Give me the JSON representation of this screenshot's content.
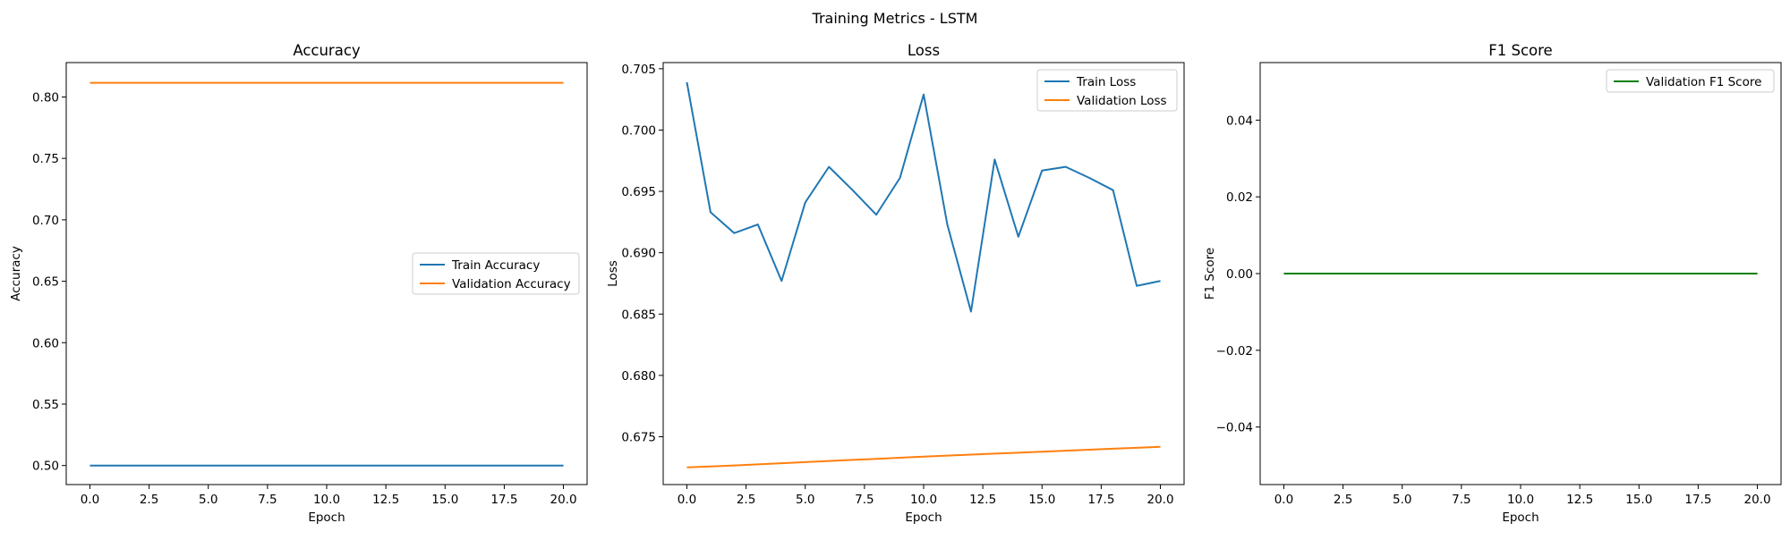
{
  "figure": {
    "suptitle": "Training Metrics - LSTM"
  },
  "colors": {
    "blue": "#1f77b4",
    "orange": "#ff7f0e",
    "green": "#008000"
  },
  "chart_data": [
    {
      "type": "line",
      "title": "Accuracy",
      "xlabel": "Epoch",
      "ylabel": "Accuracy",
      "xlim": [
        -1,
        21
      ],
      "ylim": [
        0.4845,
        0.828
      ],
      "xticks": [
        0,
        2.5,
        5,
        7.5,
        10,
        12.5,
        15,
        17.5,
        20
      ],
      "xtick_labels": [
        "0.0",
        "2.5",
        "5.0",
        "7.5",
        "10.0",
        "12.5",
        "15.0",
        "17.5",
        "20.0"
      ],
      "yticks": [
        0.5,
        0.55,
        0.6,
        0.65,
        0.7,
        0.75,
        0.8
      ],
      "ytick_labels": [
        "0.50",
        "0.55",
        "0.60",
        "0.65",
        "0.70",
        "0.75",
        "0.80"
      ],
      "legend_position": "center-right",
      "x": [
        0,
        1,
        2,
        3,
        4,
        5,
        6,
        7,
        8,
        9,
        10,
        11,
        12,
        13,
        14,
        15,
        16,
        17,
        18,
        19,
        20
      ],
      "series": [
        {
          "name": "Train Accuracy",
          "color": "#1f77b4",
          "values": [
            0.5,
            0.5,
            0.5,
            0.5,
            0.5,
            0.5,
            0.5,
            0.5,
            0.5,
            0.5,
            0.5,
            0.5,
            0.5,
            0.5,
            0.5,
            0.5,
            0.5,
            0.5,
            0.5,
            0.5,
            0.5
          ]
        },
        {
          "name": "Validation Accuracy",
          "color": "#ff7f0e",
          "values": [
            0.8115,
            0.8115,
            0.8115,
            0.8115,
            0.8115,
            0.8115,
            0.8115,
            0.8115,
            0.8115,
            0.8115,
            0.8115,
            0.8115,
            0.8115,
            0.8115,
            0.8115,
            0.8115,
            0.8115,
            0.8115,
            0.8115,
            0.8115,
            0.8115
          ]
        }
      ]
    },
    {
      "type": "line",
      "title": "Loss",
      "xlabel": "Epoch",
      "ylabel": "Loss",
      "xlim": [
        -1,
        21
      ],
      "ylim": [
        0.6711,
        0.7055
      ],
      "xticks": [
        0,
        2.5,
        5,
        7.5,
        10,
        12.5,
        15,
        17.5,
        20
      ],
      "xtick_labels": [
        "0.0",
        "2.5",
        "5.0",
        "7.5",
        "10.0",
        "12.5",
        "15.0",
        "17.5",
        "20.0"
      ],
      "yticks": [
        0.675,
        0.68,
        0.685,
        0.69,
        0.695,
        0.7,
        0.705
      ],
      "ytick_labels": [
        "0.675",
        "0.680",
        "0.685",
        "0.690",
        "0.695",
        "0.700",
        "0.705"
      ],
      "legend_position": "top-right",
      "x": [
        0,
        1,
        2,
        3,
        4,
        5,
        6,
        7,
        8,
        9,
        10,
        11,
        12,
        13,
        14,
        15,
        16,
        17,
        18,
        19,
        20
      ],
      "series": [
        {
          "name": "Train Loss",
          "color": "#1f77b4",
          "values": [
            0.7039,
            0.6933,
            0.6916,
            0.6923,
            0.6877,
            0.6941,
            0.697,
            0.6951,
            0.6931,
            0.6961,
            0.7029,
            0.6923,
            0.6852,
            0.6976,
            0.6913,
            0.6967,
            0.697,
            0.6961,
            0.6951,
            0.6873,
            0.6877
          ]
        },
        {
          "name": "Validation Loss",
          "color": "#ff7f0e",
          "values": [
            0.6725,
            0.67258,
            0.67266,
            0.67275,
            0.67284,
            0.67293,
            0.67302,
            0.67311,
            0.6732,
            0.67329,
            0.67338,
            0.67346,
            0.67354,
            0.67362,
            0.6737,
            0.67378,
            0.67386,
            0.67394,
            0.67402,
            0.6741,
            0.67418
          ]
        }
      ]
    },
    {
      "type": "line",
      "title": "F1 Score",
      "xlabel": "Epoch",
      "ylabel": "F1 Score",
      "xlim": [
        -1,
        21
      ],
      "ylim": [
        -0.055,
        0.055
      ],
      "xticks": [
        0,
        2.5,
        5,
        7.5,
        10,
        12.5,
        15,
        17.5,
        20
      ],
      "xtick_labels": [
        "0.0",
        "2.5",
        "5.0",
        "7.5",
        "10.0",
        "12.5",
        "15.0",
        "17.5",
        "20.0"
      ],
      "yticks": [
        -0.04,
        -0.02,
        0,
        0.02,
        0.04
      ],
      "ytick_labels": [
        "−0.04",
        "−0.02",
        "0.00",
        "0.02",
        "0.04"
      ],
      "legend_position": "top-right",
      "x": [
        0,
        1,
        2,
        3,
        4,
        5,
        6,
        7,
        8,
        9,
        10,
        11,
        12,
        13,
        14,
        15,
        16,
        17,
        18,
        19,
        20
      ],
      "series": [
        {
          "name": "Validation F1 Score",
          "color": "#008000",
          "values": [
            0,
            0,
            0,
            0,
            0,
            0,
            0,
            0,
            0,
            0,
            0,
            0,
            0,
            0,
            0,
            0,
            0,
            0,
            0,
            0,
            0
          ]
        }
      ]
    }
  ]
}
